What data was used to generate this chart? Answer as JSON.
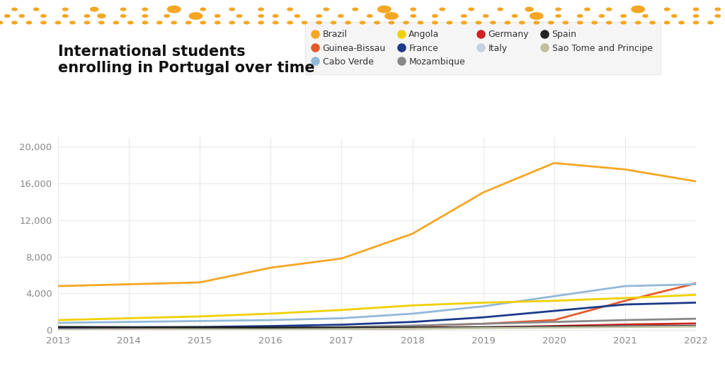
{
  "title": "International students\nenrolling in Portugal over time",
  "years": [
    2013,
    2014,
    2015,
    2016,
    2017,
    2018,
    2019,
    2020,
    2021,
    2022
  ],
  "series_order": [
    "Brazil",
    "Guinea-Bissau",
    "Cabo Verde",
    "Angola",
    "France",
    "Mozambique",
    "Germany",
    "Italy",
    "Spain",
    "Sao Tome and Principe"
  ],
  "series": {
    "Brazil": {
      "color": "#F5A623",
      "data": [
        4800,
        5000,
        5200,
        6800,
        7800,
        10500,
        15000,
        18200,
        17500,
        16200
      ]
    },
    "Guinea-Bissau": {
      "color": "#E55A2B",
      "data": [
        50,
        70,
        100,
        150,
        220,
        450,
        700,
        1100,
        3200,
        5100
      ]
    },
    "Cabo Verde": {
      "color": "#92B8D8",
      "data": [
        800,
        900,
        1000,
        1100,
        1300,
        1800,
        2600,
        3700,
        4800,
        5000
      ]
    },
    "Angola": {
      "color": "#F0D000",
      "data": [
        1100,
        1300,
        1500,
        1800,
        2200,
        2700,
        3000,
        3200,
        3500,
        3850
      ]
    },
    "France": {
      "color": "#1B3A8A",
      "data": [
        250,
        300,
        350,
        450,
        600,
        900,
        1400,
        2100,
        2800,
        3000
      ]
    },
    "Mozambique": {
      "color": "#888888",
      "data": [
        80,
        120,
        160,
        230,
        330,
        500,
        700,
        900,
        1100,
        1250
      ]
    },
    "Germany": {
      "color": "#CC2222",
      "data": [
        20,
        40,
        60,
        90,
        130,
        200,
        300,
        450,
        620,
        730
      ]
    },
    "Italy": {
      "color": "#C8D0DC",
      "data": [
        30,
        50,
        70,
        100,
        140,
        200,
        280,
        360,
        430,
        490
      ]
    },
    "Spain": {
      "color": "#222222",
      "data": [
        350,
        330,
        310,
        290,
        280,
        290,
        320,
        380,
        420,
        460
      ]
    },
    "Sao Tome and Principe": {
      "color": "#C0C0A0",
      "data": [
        20,
        35,
        55,
        80,
        120,
        170,
        230,
        290,
        350,
        400
      ]
    }
  },
  "ylim": [
    0,
    21000
  ],
  "yticks": [
    0,
    4000,
    8000,
    12000,
    16000,
    20000
  ],
  "xlim": [
    2013,
    2022
  ],
  "background_color": "#ffffff",
  "dot_color_large": "#F5A623",
  "dot_color_small": "#F5C870",
  "title_fontsize": 15,
  "axis_label_color": "#888888",
  "grid_color": "#e8e8e8"
}
